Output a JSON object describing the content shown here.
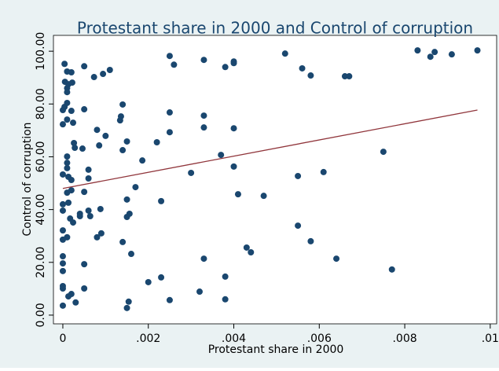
{
  "chart_data": {
    "type": "scatter",
    "title": "Protestant share in 2000 and Control of corruption",
    "xlabel": "Protestant share in 2000",
    "ylabel": "Control of corruption",
    "xlim": [
      -0.00022,
      0.01015
    ],
    "ylim": [
      -3.3,
      106
    ],
    "xticks": [
      {
        "value": 0,
        "label": "0"
      },
      {
        "value": 0.002,
        "label": ".002"
      },
      {
        "value": 0.004,
        "label": ".004"
      },
      {
        "value": 0.006,
        "label": ".006"
      },
      {
        "value": 0.008,
        "label": ".008"
      },
      {
        "value": 0.01,
        "label": ".01"
      }
    ],
    "yticks": [
      {
        "value": 0,
        "label": "0.00"
      },
      {
        "value": 20,
        "label": "20.00"
      },
      {
        "value": 40,
        "label": "40.00"
      },
      {
        "value": 60,
        "label": "60.00"
      },
      {
        "value": 80,
        "label": "80.00"
      },
      {
        "value": 100,
        "label": "100.00"
      }
    ],
    "series": [
      {
        "type": "scatter",
        "color": "#1a476f",
        "x": [
          4e-05,
          0.0001,
          0.0002,
          5e-05,
          0.00013,
          0.00022,
          0.0001,
          0.0001,
          0.0001,
          4e-05,
          0,
          0.0002,
          0.0001,
          0,
          0.00024,
          0.00026,
          0.00028,
          0.0001,
          0.0001,
          0.0001,
          0,
          0.00013,
          0.0002,
          0.0001,
          0.0002,
          0.00013,
          0,
          0,
          0.00017,
          0.00024,
          0,
          0.0001,
          0,
          0,
          0,
          0,
          0,
          0,
          0.00013,
          0.0002,
          0.0003,
          0,
          0.0005,
          0.0005,
          0.00046,
          0.0006,
          0.0006,
          0.0005,
          0.0006,
          0.0004,
          0.0004,
          0.00064,
          0.0005,
          0.0005,
          0.00073,
          0.00094,
          0.0011,
          0.0008,
          0.001,
          0.00085,
          0.00088,
          0.0008,
          0.0009,
          0.00136,
          0.00134,
          0.0014,
          0.0014,
          0.0015,
          0.00186,
          0.0017,
          0.0015,
          0.00156,
          0.0015,
          0.0014,
          0.0016,
          0.00154,
          0.0015,
          0.0022,
          0.0023,
          0.002,
          0.0023,
          0.0025,
          0.0026,
          0.0025,
          0.0025,
          0.0025,
          0.003,
          0.0033,
          0.0033,
          0.0033,
          0.0033,
          0.0032,
          0.0037,
          0.0038,
          0.004,
          0.004,
          0.004,
          0.004,
          0.0041,
          0.0038,
          0.0038,
          0.0047,
          0.0043,
          0.0044,
          0.0052,
          0.0056,
          0.0058,
          0.0055,
          0.0055,
          0.0058,
          0.0061,
          0.0064,
          0.0066,
          0.0067,
          0.0075,
          0.0077,
          0.0083,
          0.0086,
          0.0087,
          0.0091,
          0.0097
        ],
        "values": [
          95.2,
          92.3,
          92,
          88.4,
          87.5,
          88.1,
          86,
          84.5,
          80.4,
          78.9,
          77.7,
          77.4,
          74.1,
          72.3,
          72.9,
          65.2,
          63.4,
          60.1,
          57.7,
          55.7,
          53.3,
          52.4,
          51.2,
          46.4,
          47.3,
          42.6,
          42,
          39.6,
          36.6,
          35.1,
          32.1,
          29.5,
          28.6,
          22.3,
          19.6,
          16.7,
          11,
          10.1,
          7.1,
          8,
          4.8,
          3.6,
          94.3,
          78,
          63.1,
          55.1,
          51.8,
          46.7,
          39.6,
          38.4,
          37.5,
          37.5,
          19.3,
          10.1,
          90.2,
          91.4,
          92.9,
          70.2,
          67.9,
          64.3,
          40.2,
          29.5,
          31,
          75.3,
          73.8,
          79.8,
          62.5,
          65.8,
          58.6,
          48.5,
          43.8,
          38.4,
          37.2,
          27.7,
          23.2,
          5.1,
          2.7,
          65.5,
          43.2,
          12.5,
          14.3,
          98.2,
          94.9,
          76.8,
          69.3,
          5.7,
          53.9,
          96.7,
          75.6,
          71.1,
          21.4,
          8.9,
          60.7,
          94,
          96.1,
          95.5,
          70.8,
          56.3,
          45.8,
          14.6,
          6,
          45.2,
          25.6,
          23.8,
          99.1,
          93.5,
          90.8,
          52.7,
          33.9,
          28,
          54.2,
          21.4,
          90.5,
          90.5,
          61.9,
          17.3,
          100.3,
          97.9,
          99.7,
          98.8,
          100.3
        ]
      },
      {
        "type": "line",
        "color": "#90353b",
        "x": [
          0,
          0.0097
        ],
        "values": [
          48,
          77.7
        ]
      }
    ]
  }
}
